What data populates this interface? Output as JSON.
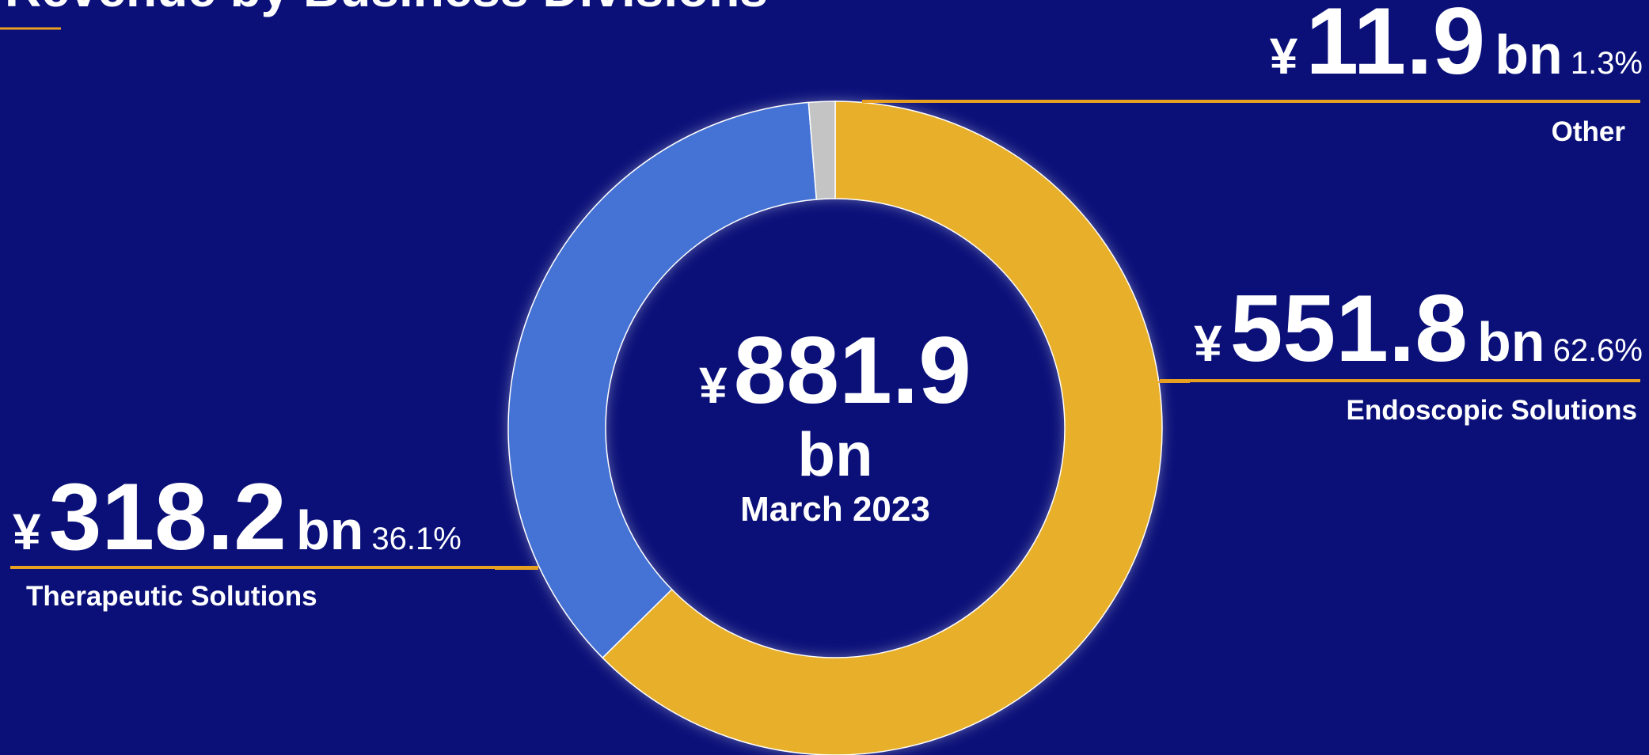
{
  "chart_data": {
    "type": "pie",
    "donut": true,
    "title": "Revenue by Business Divisions",
    "categories": [
      "Endoscopic Solutions",
      "Therapeutic Solutions",
      "Other"
    ],
    "values": [
      62.6,
      36.1,
      1.3
    ],
    "value_labels": [
      "62.6%",
      "36.1%",
      "1.3%"
    ],
    "amounts": [
      551.8,
      318.2,
      11.9
    ],
    "colors": [
      "#e8b02a",
      "#4573d5",
      "#c4c4c4"
    ],
    "currency": "¥",
    "unit": "bn",
    "total": 881.9,
    "center_label": "March 2023"
  }
}
